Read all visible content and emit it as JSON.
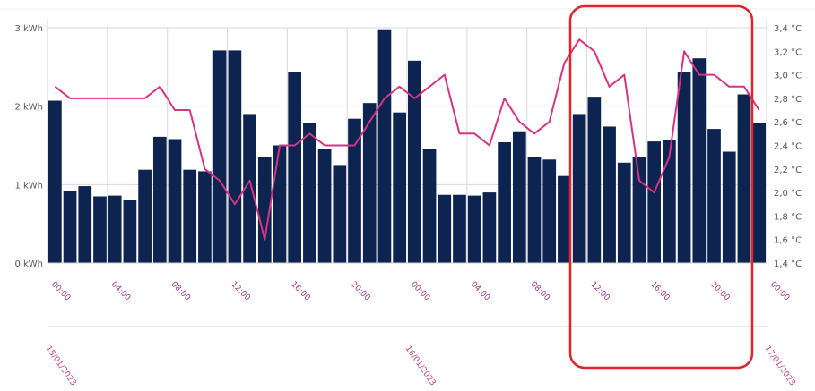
{
  "colors": {
    "bar": "#0d2350",
    "line": "#d63384",
    "highlight": "#e0242b",
    "tick_label": "#9b3b8e",
    "date_label": "#c0407a"
  },
  "chart_data": {
    "type": "bar",
    "grid": true,
    "ylim_left": [
      0,
      3
    ],
    "ylim_right": [
      1.4,
      3.4
    ],
    "left_ticks": [
      "0 kWh",
      "1 kWh",
      "2 kWh",
      "3 kWh"
    ],
    "right_ticks": [
      "1,4 °C",
      "1,6 °C",
      "1,8 °C",
      "2,0 °C",
      "2,2 °C",
      "2,4 °C",
      "2,6 °C",
      "2,8 °C",
      "3,0 °C",
      "3,2 °C",
      "3,4 °C"
    ],
    "x_time_labels": [
      "00:00",
      "04:00",
      "08:00",
      "12:00",
      "16:00",
      "20:00",
      "00:00",
      "04:00",
      "08:00",
      "12:00",
      "16:00",
      "20:00",
      "00:00"
    ],
    "x_date_labels": [
      "15/01/2023",
      "16/01/2023",
      "17/01/2023"
    ],
    "series": [
      {
        "kind": "bar",
        "unit": "kWh",
        "values": [
          2.07,
          0.92,
          0.98,
          0.85,
          0.86,
          0.81,
          1.19,
          1.61,
          1.58,
          1.19,
          1.17,
          2.71,
          2.71,
          1.9,
          1.35,
          1.5,
          2.44,
          1.78,
          1.46,
          1.25,
          1.84,
          2.04,
          2.98,
          1.92,
          2.58,
          1.46,
          0.87,
          0.87,
          0.86,
          0.9,
          1.54,
          1.68,
          1.35,
          1.32,
          1.11,
          1.9,
          2.12,
          1.74,
          1.28,
          1.35,
          1.55,
          1.57,
          2.44,
          2.61,
          1.71,
          1.42,
          2.15,
          1.79
        ]
      },
      {
        "kind": "line",
        "unit": "°C",
        "values": [
          2.9,
          2.8,
          2.8,
          2.8,
          2.8,
          2.8,
          2.8,
          2.9,
          2.7,
          2.7,
          2.2,
          2.1,
          1.9,
          2.1,
          1.6,
          2.4,
          2.4,
          2.5,
          2.4,
          2.4,
          2.4,
          2.6,
          2.8,
          2.9,
          2.8,
          2.9,
          3.0,
          2.5,
          2.5,
          2.4,
          2.8,
          2.6,
          2.5,
          2.6,
          3.1,
          3.3,
          3.2,
          2.9,
          3.0,
          2.1,
          2.0,
          2.3,
          3.2,
          3.0,
          3.0,
          2.9,
          2.9,
          2.7
        ]
      }
    ]
  }
}
